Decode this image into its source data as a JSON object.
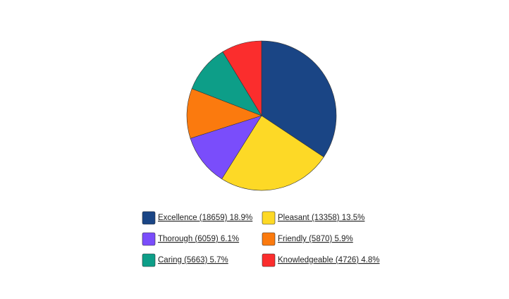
{
  "chart_data": {
    "type": "pie",
    "categories": [
      "Excellence",
      "Pleasant",
      "Thorough",
      "Friendly",
      "Caring",
      "Knowledgeable"
    ],
    "values": [
      18659,
      13358,
      6059,
      5870,
      5663,
      4726
    ],
    "legend_labels": [
      "Excellence (18659) 18.9%",
      "Pleasant (13358) 13.5%",
      "Thorough (6059) 6.1%",
      "Friendly (5870) 5.9%",
      "Caring (5663) 5.7%",
      "Knowledgeable (4726) 4.8%"
    ],
    "colors": [
      "#1a4585",
      "#fdd926",
      "#7a4dfb",
      "#fb7a0e",
      "#0d9e88",
      "#fb2d2d"
    ]
  }
}
